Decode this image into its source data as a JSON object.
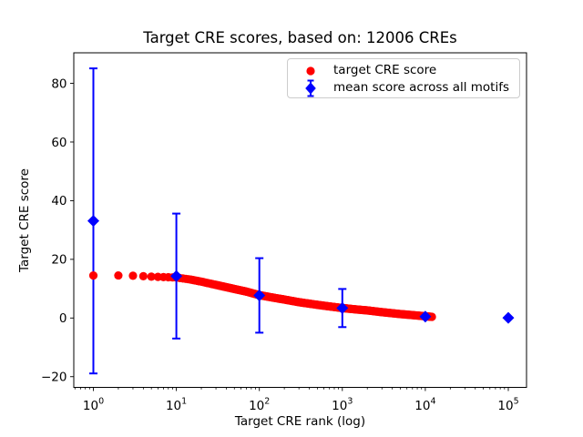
{
  "chart_data": {
    "type": "scatter",
    "title": "Target CRE scores, based on: 12006 CREs",
    "xlabel": "Target CRE rank (log)",
    "ylabel": "Target CRE score",
    "x_scale": "log",
    "xlim": [
      0.58,
      165000
    ],
    "ylim": [
      -23.5,
      90.8
    ],
    "x_tick_exponents": [
      0,
      1,
      2,
      3,
      4,
      5
    ],
    "y_ticks": [
      -20,
      0,
      20,
      40,
      60,
      80
    ],
    "grid": false,
    "legend_position": "upper right",
    "n_cres_shown_in_title": 12006,
    "series": [
      {
        "name": "target CRE score",
        "marker": "circle",
        "color": "#ff0000",
        "rank_range": [
          1,
          12006
        ],
        "sampled_points": [
          [
            1,
            14.5
          ],
          [
            2,
            14.5
          ],
          [
            3,
            14.4
          ],
          [
            4,
            14.25
          ],
          [
            5,
            14.1
          ],
          [
            7,
            13.95
          ],
          [
            10,
            13.8
          ],
          [
            15,
            13.1
          ],
          [
            20,
            12.4
          ],
          [
            30,
            11.3
          ],
          [
            50,
            9.9
          ],
          [
            70,
            9.0
          ],
          [
            100,
            7.8
          ],
          [
            150,
            6.9
          ],
          [
            200,
            6.3
          ],
          [
            300,
            5.4
          ],
          [
            500,
            4.5
          ],
          [
            700,
            3.95
          ],
          [
            1000,
            3.4
          ],
          [
            1500,
            2.9
          ],
          [
            2000,
            2.6
          ],
          [
            3000,
            2.0
          ],
          [
            5000,
            1.35
          ],
          [
            7000,
            1.0
          ],
          [
            10000,
            0.6
          ],
          [
            12006,
            0.4
          ]
        ]
      },
      {
        "name": "mean score across all motifs",
        "marker": "diamond",
        "color": "#0000ff",
        "x": [
          1,
          10,
          100,
          1000,
          10000,
          100000
        ],
        "y": [
          33.1,
          14.3,
          7.7,
          3.4,
          0.5,
          0.05
        ],
        "yerr": [
          52.0,
          21.3,
          12.7,
          6.5,
          0.5,
          0.1
        ]
      }
    ]
  }
}
